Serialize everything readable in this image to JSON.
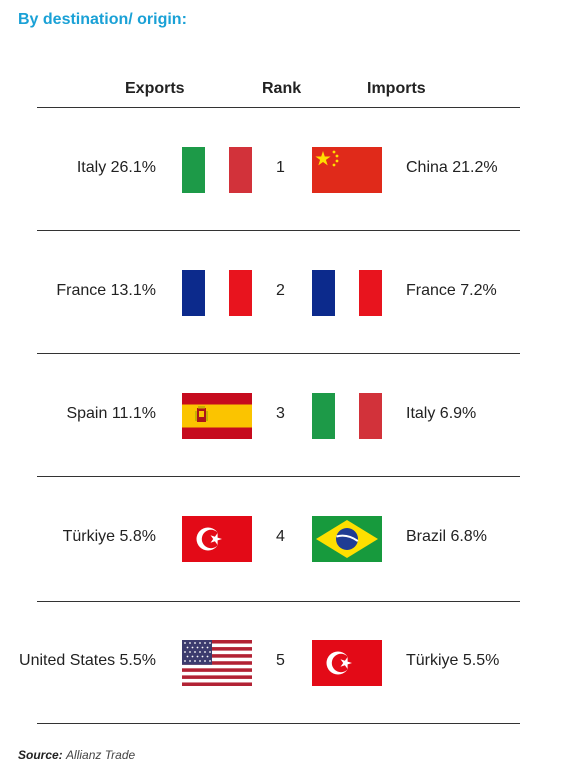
{
  "title": "By destination/ origin:",
  "headers": {
    "exports": "Exports",
    "rank": "Rank",
    "imports": "Imports"
  },
  "rows": [
    {
      "rank": "1",
      "export_label": "Italy 26.1%",
      "export_flag": "italy-flag-icon",
      "import_label": "China 21.2%",
      "import_flag": "china-flag-icon"
    },
    {
      "rank": "2",
      "export_label": "France 13.1%",
      "export_flag": "france-flag-icon",
      "import_label": "France 7.2%",
      "import_flag": "france-flag-icon"
    },
    {
      "rank": "3",
      "export_label": "Spain 11.1%",
      "export_flag": "spain-flag-icon",
      "import_label": "Italy 6.9%",
      "import_flag": "italy-flag-icon"
    },
    {
      "rank": "4",
      "export_label": "Türkiye 5.8%",
      "export_flag": "turkiye-flag-icon",
      "import_label": "Brazil 6.8%",
      "import_flag": "brazil-flag-icon"
    },
    {
      "rank": "5",
      "export_label": "United States 5.5%",
      "export_flag": "usa-flag-icon",
      "import_label": "Türkiye 5.5%",
      "import_flag": "turkiye-flag-icon"
    }
  ],
  "source": {
    "label": "Source:",
    "value": "Allianz Trade"
  },
  "colors": {
    "title": "#1aa1d6",
    "italy_green": "#1d9a48",
    "italy_red": "#d2323a",
    "china_red": "#e02a1a",
    "china_star": "#ffde00",
    "france_blue": "#0c2a8c",
    "france_red": "#e8141e",
    "spain_red": "#c60b1e",
    "spain_yellow": "#fbc400",
    "turkiye_red": "#e30a17",
    "brazil_green": "#179a3d",
    "brazil_yellow": "#fedf00",
    "brazil_blue": "#1f3c93",
    "usa_red": "#b22234",
    "usa_blue": "#3c3b6e"
  }
}
